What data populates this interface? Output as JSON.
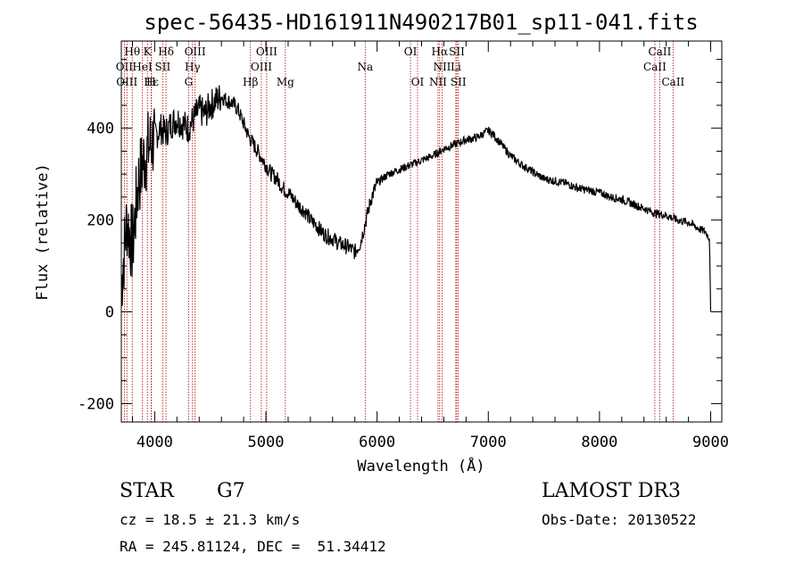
{
  "chart_data": {
    "type": "line",
    "title": "spec-56435-HD161911N490217B01_sp11-041.fits",
    "xlabel": "Wavelength (Å)",
    "ylabel": "Flux (relative)",
    "xlim": [
      3700,
      9100
    ],
    "ylim": [
      -240,
      590
    ],
    "xticks": [
      4000,
      5000,
      6000,
      7000,
      8000,
      9000
    ],
    "yticks": [
      -200,
      0,
      200,
      400
    ],
    "series": [
      {
        "name": "flux",
        "x": [
          3700,
          3750,
          3800,
          3850,
          3900,
          3950,
          4000,
          4050,
          4100,
          4150,
          4200,
          4250,
          4300,
          4350,
          4400,
          4450,
          4500,
          4550,
          4600,
          4650,
          4700,
          4750,
          4800,
          4850,
          4900,
          4950,
          5000,
          5050,
          5100,
          5150,
          5200,
          5250,
          5300,
          5350,
          5400,
          5450,
          5500,
          5550,
          5600,
          5650,
          5700,
          5750,
          5800,
          5850,
          5900,
          5950,
          6000,
          6100,
          6200,
          6300,
          6400,
          6500,
          6600,
          6700,
          6800,
          6900,
          7000,
          7050,
          7100,
          7200,
          7300,
          7400,
          7500,
          7600,
          7700,
          7800,
          7900,
          8000,
          8100,
          8200,
          8300,
          8400,
          8500,
          8600,
          8700,
          8800,
          8900,
          8950,
          8990,
          9000
        ],
        "y": [
          60,
          200,
          140,
          280,
          330,
          360,
          380,
          400,
          390,
          410,
          420,
          410,
          400,
          420,
          440,
          430,
          450,
          460,
          470,
          460,
          455,
          440,
          410,
          380,
          360,
          340,
          320,
          300,
          290,
          270,
          260,
          245,
          230,
          220,
          200,
          190,
          175,
          165,
          160,
          150,
          145,
          140,
          130,
          150,
          200,
          250,
          280,
          300,
          310,
          320,
          330,
          340,
          355,
          365,
          375,
          380,
          395,
          385,
          370,
          340,
          320,
          305,
          290,
          285,
          280,
          270,
          265,
          260,
          250,
          245,
          235,
          225,
          215,
          210,
          200,
          195,
          180,
          175,
          160,
          0
        ]
      }
    ],
    "spectral_lines": [
      {
        "label": "Hθ",
        "x": 3798,
        "row": 1
      },
      {
        "label": "K",
        "x": 3934,
        "row": 1
      },
      {
        "label": "Hδ",
        "x": 4102,
        "row": 1
      },
      {
        "label": "OIII",
        "x": 4363,
        "row": 1
      },
      {
        "label": "OIII",
        "x": 5007,
        "row": 1
      },
      {
        "label": "OI",
        "x": 6300,
        "row": 1
      },
      {
        "label": "Hα",
        "x": 6563,
        "row": 1
      },
      {
        "label": "SII",
        "x": 6717,
        "row": 1
      },
      {
        "label": "CaII",
        "x": 8542,
        "row": 1
      },
      {
        "label": "OII",
        "x": 3727,
        "row": 2
      },
      {
        "label": "HeI",
        "x": 3889,
        "row": 2
      },
      {
        "label": "SII",
        "x": 4072,
        "row": 2
      },
      {
        "label": "Hγ",
        "x": 4340,
        "row": 2
      },
      {
        "label": "OIII",
        "x": 4959,
        "row": 2
      },
      {
        "label": "Na",
        "x": 5893,
        "row": 2
      },
      {
        "label": "NII",
        "x": 6584,
        "row": 2
      },
      {
        "label": "Li",
        "x": 6708,
        "row": 2
      },
      {
        "label": "CaII",
        "x": 8498,
        "row": 2
      },
      {
        "label": "OIII",
        "x": 3750,
        "row": 3
      },
      {
        "label": "Hε",
        "x": 3970,
        "row": 3
      },
      {
        "label": "H",
        "x": 3968,
        "row": 3
      },
      {
        "label": "G",
        "x": 4305,
        "row": 3
      },
      {
        "label": "Hβ",
        "x": 4861,
        "row": 3
      },
      {
        "label": "Mg",
        "x": 5175,
        "row": 3
      },
      {
        "label": "OI",
        "x": 6364,
        "row": 3
      },
      {
        "label": "NII",
        "x": 6548,
        "row": 3
      },
      {
        "label": "SII",
        "x": 6731,
        "row": 3
      },
      {
        "label": "CaII",
        "x": 8662,
        "row": 3
      }
    ]
  },
  "info": {
    "object_type": "STAR",
    "subclass": "G7",
    "survey": "LAMOST DR3",
    "cz": "cz = 18.5 ± 21.3 km/s",
    "obs_date": "Obs-Date: 20130522",
    "coords": "RA = 245.81124, DEC =  51.34412"
  }
}
